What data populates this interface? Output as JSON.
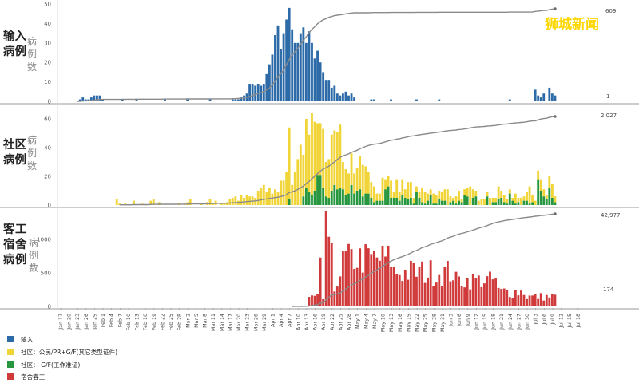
{
  "watermark": "狮城新闻",
  "legend": [
    {
      "label": "输入",
      "color": "#2c6aa8"
    },
    {
      "label": "社区：公民/PR+G/F(其它类型证件)",
      "color": "#f1d438"
    },
    {
      "label": "社区： G/F(工作准证)",
      "color": "#27973f"
    },
    {
      "label": "宿舍客工",
      "color": "#d13a3a"
    }
  ],
  "chart_data": [
    {
      "type": "bar",
      "panel_title": [
        "输入",
        "病例"
      ],
      "panel_subtitle": [
        "病",
        "例",
        "数"
      ],
      "series": [
        {
          "name": "输入",
          "color": "#2c6aa8"
        }
      ],
      "yticks": [
        0,
        10,
        20,
        30,
        40,
        50
      ],
      "ylim": [
        0,
        50
      ],
      "peak": {
        "date": "Mar 23",
        "value": 48
      },
      "cumulative_end_label": "609",
      "last_value_label": "1"
    },
    {
      "type": "bar",
      "stacked": true,
      "panel_title": [
        "社区",
        "病例"
      ],
      "panel_subtitle": [
        "病",
        "例",
        "数"
      ],
      "series": [
        {
          "name": "社区：公民/PR+G/F(其它类型证件)",
          "color": "#f1d438"
        },
        {
          "name": "社区： G/F(工作准证)",
          "color": "#27973f"
        }
      ],
      "yticks": [
        0,
        20,
        40,
        60
      ],
      "ylim": [
        0,
        65
      ],
      "peak": {
        "date": "Apr 7",
        "value": 64
      },
      "cumulative_end_label": "2,027"
    },
    {
      "type": "bar",
      "panel_title": [
        "客",
        "工",
        "宿",
        "舍",
        "病",
        "例"
      ],
      "panel_subtitle": [
        "病",
        "例",
        "数"
      ],
      "series": [
        {
          "name": "宿舍客工",
          "color": "#d13a3a"
        }
      ],
      "yticks": [
        0,
        500,
        1000
      ],
      "ylim": [
        0,
        1450
      ],
      "peak": {
        "date": "Apr 20",
        "value": 1426
      },
      "cumulative_end_label": "42,977",
      "last_value_label": "174"
    }
  ],
  "xaxis": {
    "first_date": "Jan 17",
    "tick_labels": [
      "Jan 17",
      "Jan 20",
      "Jan 23",
      "Jan 26",
      "Jan 29",
      "Feb 1",
      "Feb 4",
      "Feb 7",
      "Feb 10",
      "Feb 13",
      "Feb 16",
      "Feb 19",
      "Feb 22",
      "Feb 25",
      "Feb 28",
      "Mar 2",
      "Mar 5",
      "Mar 8",
      "Mar 11",
      "Mar 14",
      "Mar 17",
      "Mar 20",
      "Mar 23",
      "Mar 26",
      "Mar 29",
      "Apr 1",
      "Apr 4",
      "Apr 7",
      "Apr 10",
      "Apr 13",
      "Apr 16",
      "Apr 19",
      "Apr 22",
      "Apr 25",
      "Apr 28",
      "May 1",
      "May 4",
      "May 7",
      "May 10",
      "May 13",
      "May 16",
      "May 19",
      "May 22",
      "May 25",
      "May 28",
      "May 31",
      "Jun 3",
      "Jun 6",
      "Jun 9",
      "Jun 12",
      "Jun 15",
      "Jun 18",
      "Jun 21",
      "Jun 24",
      "Jun 27",
      "Jun 30",
      "Jul 3",
      "Jul 6",
      "Jul 9",
      "Jul 12",
      "Jul 15",
      "Jul 18"
    ]
  }
}
